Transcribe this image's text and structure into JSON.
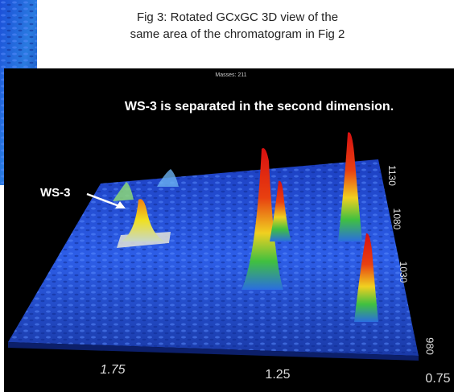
{
  "caption": {
    "line1": "Fig 3:  Rotated GCxGC 3D view of the",
    "line2": "same area of the chromatogram in Fig 2"
  },
  "plot": {
    "header": "Masses: 211",
    "title": "WS-3 is separated in the second dimension.",
    "annotation": "WS-3",
    "x_labels": [
      "1.75",
      "1.25",
      "0.75"
    ],
    "y_labels": [
      "1130",
      "1080",
      "1030",
      "980"
    ]
  }
}
